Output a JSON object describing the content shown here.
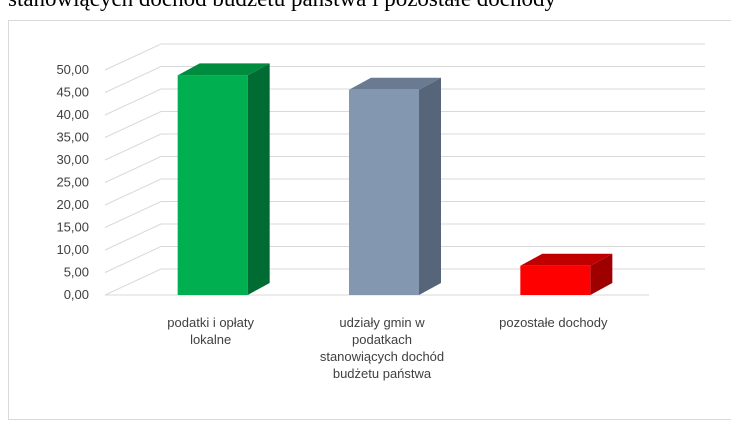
{
  "chart_title_fragment": "stanowiących dochód budżetu państwa i pozostałe dochody",
  "chart_data": {
    "type": "bar",
    "style": "3d-column",
    "categories": [
      [
        "podatki i opłaty",
        "lokalne"
      ],
      [
        "udziały gmin w",
        "podatkach",
        "stanowiących dochód",
        "budżetu państwa"
      ],
      [
        "pozostałe dochody"
      ]
    ],
    "values": [
      48.8,
      45.6,
      6.5
    ],
    "ylim": [
      0,
      50
    ],
    "y_ticks": [
      "0,00",
      "5,00",
      "10,00",
      "15,00",
      "20,00",
      "25,00",
      "30,00",
      "35,00",
      "40,00",
      "45,00",
      "50,00"
    ],
    "grid": true,
    "legend": "none",
    "colors": [
      {
        "front": "#00b050",
        "side": "#006b32",
        "top": "#008c3f"
      },
      {
        "front": "#8497b0",
        "side": "#56657a",
        "top": "#6a7a90"
      },
      {
        "front": "#ff0000",
        "side": "#9e0000",
        "top": "#c00000"
      }
    ],
    "grid_color": "#d9d9d9"
  }
}
